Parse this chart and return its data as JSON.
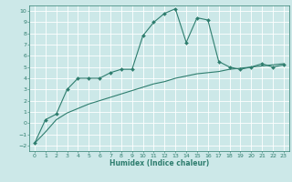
{
  "title": "",
  "xlabel": "Humidex (Indice chaleur)",
  "ylabel": "",
  "background_color": "#cce8e8",
  "grid_color": "#ffffff",
  "line_color": "#2e7d6e",
  "xlim": [
    -0.5,
    23.5
  ],
  "ylim": [
    -2.5,
    10.5
  ],
  "xticks": [
    0,
    1,
    2,
    3,
    4,
    5,
    6,
    7,
    8,
    9,
    10,
    11,
    12,
    13,
    14,
    15,
    16,
    17,
    18,
    19,
    20,
    21,
    22,
    23
  ],
  "yticks": [
    -2,
    -1,
    0,
    1,
    2,
    3,
    4,
    5,
    6,
    7,
    8,
    9,
    10
  ],
  "line1_x": [
    0,
    1,
    2,
    3,
    4,
    5,
    6,
    7,
    8,
    9,
    10,
    11,
    12,
    13,
    14,
    15,
    16,
    17,
    18,
    19,
    20,
    21,
    22,
    23
  ],
  "line1_y": [
    -1.8,
    0.3,
    0.8,
    3.0,
    4.0,
    4.0,
    4.0,
    4.5,
    4.8,
    4.8,
    7.8,
    9.0,
    9.8,
    10.2,
    7.2,
    9.4,
    9.2,
    5.5,
    5.0,
    4.8,
    5.0,
    5.3,
    5.0,
    5.2
  ],
  "line2_x": [
    0,
    1,
    2,
    3,
    4,
    5,
    6,
    7,
    8,
    9,
    10,
    11,
    12,
    13,
    14,
    15,
    16,
    17,
    18,
    19,
    20,
    21,
    22,
    23
  ],
  "line2_y": [
    -1.8,
    -0.8,
    0.3,
    0.9,
    1.3,
    1.7,
    2.0,
    2.3,
    2.6,
    2.9,
    3.2,
    3.5,
    3.7,
    4.0,
    4.2,
    4.4,
    4.5,
    4.6,
    4.8,
    4.9,
    5.0,
    5.1,
    5.2,
    5.3
  ],
  "tick_fontsize": 4.5,
  "xlabel_fontsize": 5.5,
  "xlabel_fontweight": "bold"
}
